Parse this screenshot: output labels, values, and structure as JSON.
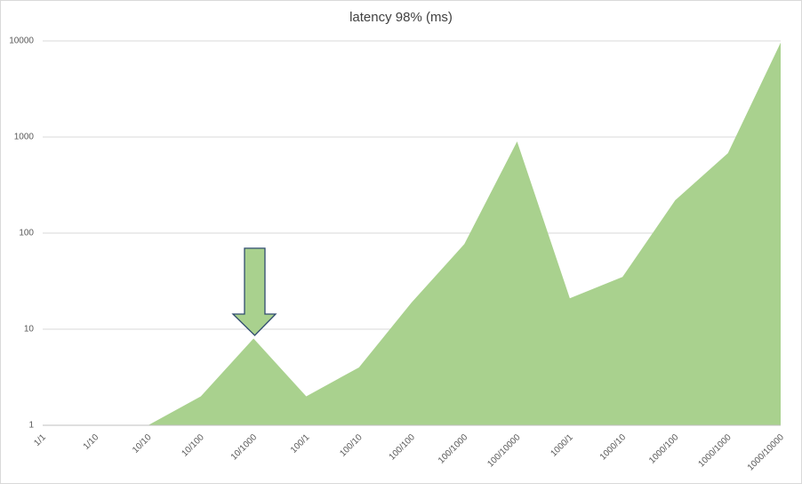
{
  "chart_data": {
    "type": "area",
    "title": "latency 98% (ms)",
    "categories": [
      "1/1",
      "1/10",
      "10/10",
      "10/100",
      "10/1000",
      "100/1",
      "100/10",
      "100/100",
      "100/1000",
      "100/10000",
      "1000/1",
      "1000/10",
      "1000/100",
      "1000/1000",
      "1000/10000"
    ],
    "values": [
      1,
      1,
      1,
      2,
      8,
      2,
      4,
      19,
      77,
      900,
      21,
      35,
      220,
      680,
      9600
    ],
    "color": "#a9d18e",
    "ylim": [
      1,
      10000
    ],
    "yticks": [
      1,
      10,
      100,
      1000,
      10000
    ],
    "log_scale": true,
    "grid": true
  }
}
